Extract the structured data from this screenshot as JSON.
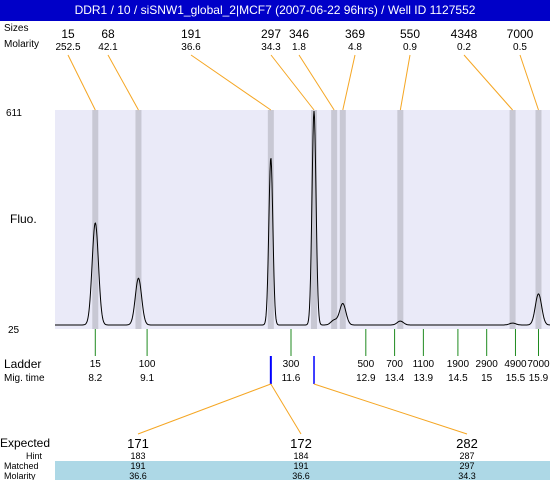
{
  "window_title": "DDR1 / 10 / siSNW1_global_2|MCF7 (2007-06-22 96hrs) / Well ID 1127552",
  "colors": {
    "title_bar": "#0000c8",
    "plot_bg": "#eaeaf8",
    "band": "#c8c8d4",
    "orange_line": "#f5a623",
    "green_line": "#1f8a1f",
    "blue_marker": "#0000ff",
    "red_value": "#e31a1c",
    "table_bg": "#add8e6"
  },
  "chart_data": {
    "type": "line",
    "row_labels": {
      "sizes": "Sizes",
      "molarity": "Molarity",
      "fluo": "Fluo.",
      "ladder": "Ladder",
      "mig_time": "Mig. time",
      "expected": "Expected",
      "hint": "Hint",
      "matched": "Matched",
      "molarity_table": "Molarity"
    },
    "y_axis": {
      "min": 25,
      "max": 611,
      "tick_labels": [
        "611",
        "25"
      ]
    },
    "x_axis": {
      "unit": "migration time",
      "min": 7.5,
      "max": 16.1
    },
    "peaks": [
      {
        "size": "15",
        "molarity": "252.5",
        "time": 8.2,
        "height": 105
      },
      {
        "size": "68",
        "molarity": "42.1",
        "time": 8.95,
        "height": 48
      },
      {
        "size": "191",
        "molarity": "36.6",
        "time": 11.25,
        "height": 172
      },
      {
        "size": "297",
        "molarity": "34.3",
        "time": 12.0,
        "height": 220
      },
      {
        "size": "346",
        "molarity": "1.8",
        "time": 12.35,
        "height": 5
      },
      {
        "size": "369",
        "molarity": "4.8",
        "time": 12.5,
        "height": 22
      },
      {
        "size": "550",
        "molarity": "0.9",
        "time": 13.5,
        "height": 4
      },
      {
        "size": "4348",
        "molarity": "0.2",
        "time": 15.45,
        "height": 2
      },
      {
        "size": "7000",
        "molarity": "0.5",
        "time": 15.9,
        "height": 32
      }
    ],
    "ladder": [
      {
        "size": "15",
        "time": "8.2"
      },
      {
        "size": "100",
        "time": "9.1"
      },
      {
        "size": "300",
        "time": "11.6"
      },
      {
        "size": "500",
        "time": "12.9"
      },
      {
        "size": "700",
        "time": "13.4"
      },
      {
        "size": "1100",
        "time": "13.9"
      },
      {
        "size": "1900",
        "time": "14.5"
      },
      {
        "size": "2900",
        "time": "15"
      },
      {
        "size": "4900",
        "time": "15.5"
      },
      {
        "size": "7000",
        "time": "15.9"
      }
    ],
    "expected_table": [
      {
        "expected": "171",
        "hint": "183",
        "matched": "191",
        "molarity": "36.6"
      },
      {
        "expected": "172",
        "hint": "184",
        "matched": "191",
        "molarity": "36.6"
      },
      {
        "expected": "282",
        "hint": "287",
        "matched": "297",
        "molarity": "34.3"
      }
    ],
    "expected_colors": [
      "#e31a1c",
      "#000000",
      "#e31a1c"
    ],
    "grid": false
  }
}
